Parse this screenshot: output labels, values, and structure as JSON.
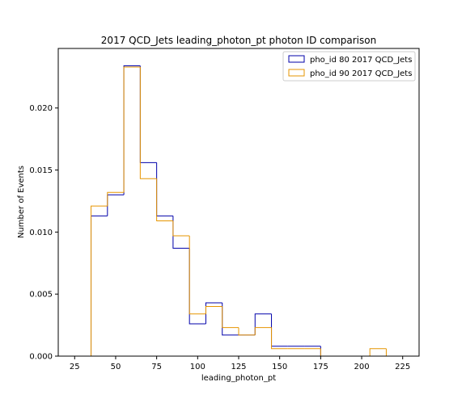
{
  "chart_data": {
    "type": "histogram-step",
    "title": "2017 QCD_Jets leading_photon_pt photon ID comparison",
    "xlabel": "leading_photon_pt",
    "ylabel": "Number of Events",
    "xlim": [
      15,
      235
    ],
    "ylim": [
      0,
      0.0248
    ],
    "xticks": [
      25,
      50,
      75,
      100,
      125,
      150,
      175,
      200,
      225
    ],
    "xtick_labels": [
      "25",
      "50",
      "75",
      "100",
      "125",
      "150",
      "175",
      "200",
      "225"
    ],
    "yticks": [
      0,
      0.005,
      0.01,
      0.015,
      0.02
    ],
    "ytick_labels": [
      "0.000",
      "0.005",
      "0.010",
      "0.015",
      "0.020"
    ],
    "bin_edges": [
      35,
      45,
      55,
      65,
      75,
      85,
      95,
      105,
      115,
      125,
      135,
      145,
      155,
      165,
      175,
      185,
      195,
      205,
      215
    ],
    "legend_position": "top-right",
    "grid": false,
    "series": [
      {
        "name": "pho_id 80 2017 QCD_Jets",
        "color": "#0000aa",
        "values": [
          0.0113,
          0.013,
          0.0234,
          0.0156,
          0.0113,
          0.0087,
          0.0026,
          0.0043,
          0.0017,
          0.0017,
          0.0034,
          0.0008,
          0.0008,
          0.0008,
          0,
          0,
          0,
          0
        ]
      },
      {
        "name": "pho_id 90 2017 QCD_Jets",
        "color": "#e69500",
        "values": [
          0.0121,
          0.0132,
          0.0233,
          0.0143,
          0.0109,
          0.0097,
          0.0034,
          0.004,
          0.0023,
          0.0017,
          0.0023,
          0.0006,
          0.0006,
          0.0006,
          0,
          0,
          0,
          0.0006
        ]
      }
    ]
  }
}
